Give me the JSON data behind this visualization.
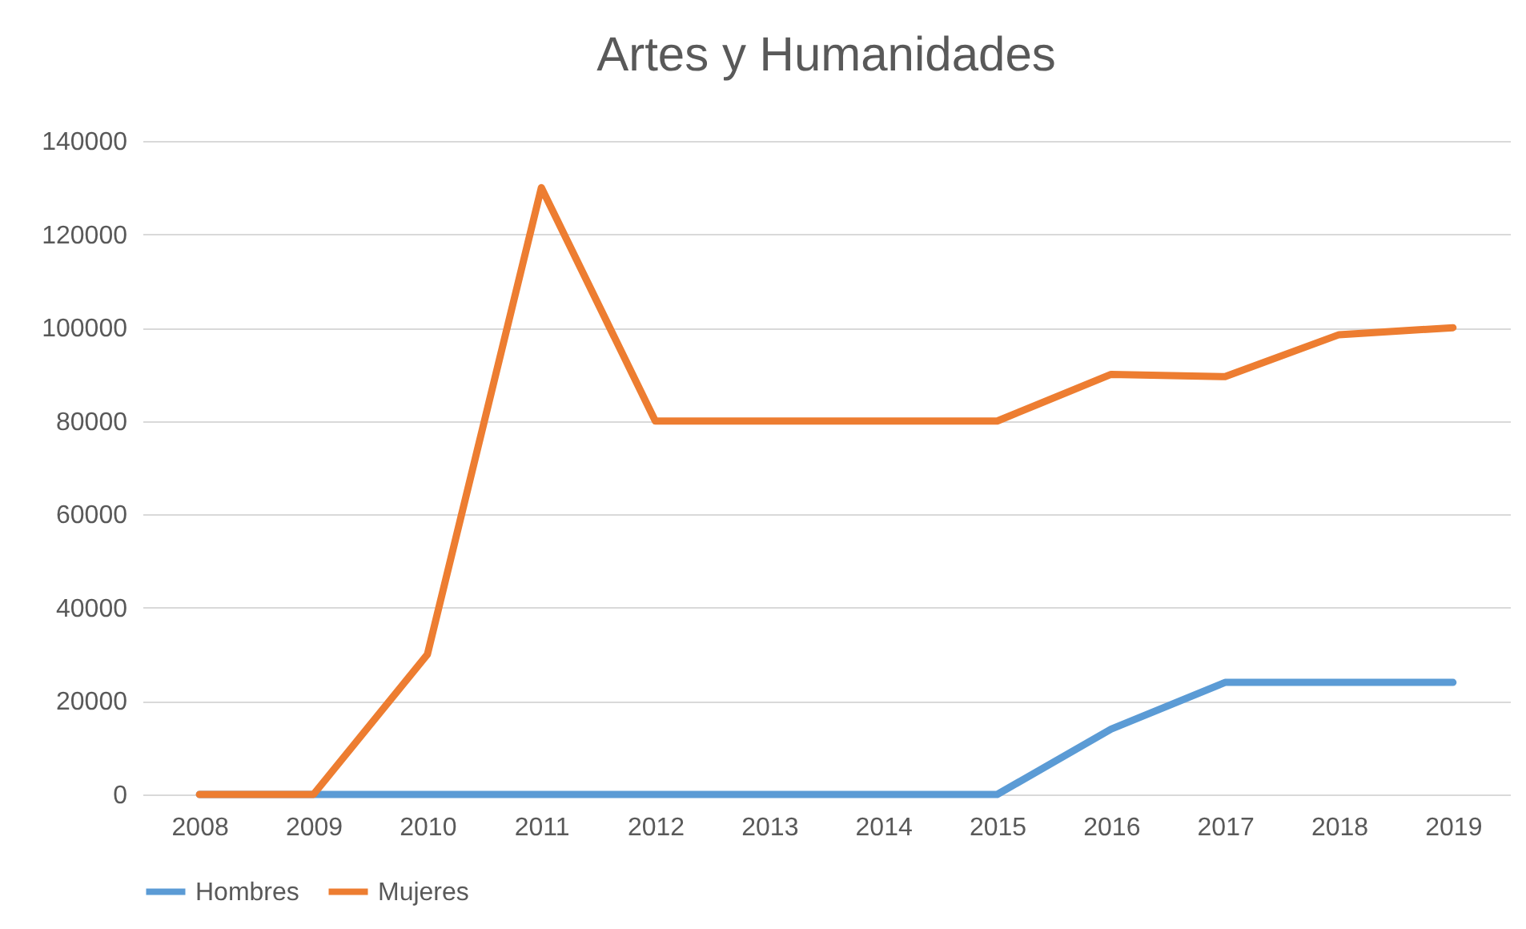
{
  "chart_data": {
    "type": "line",
    "title": "Artes y Humanidades",
    "categories": [
      "2008",
      "2009",
      "2010",
      "2011",
      "2012",
      "2013",
      "2014",
      "2015",
      "2016",
      "2017",
      "2018",
      "2019"
    ],
    "series": [
      {
        "name": "Hombres",
        "color": "#5b9bd5",
        "values": [
          0,
          0,
          0,
          0,
          0,
          0,
          0,
          0,
          14000,
          24000,
          24000,
          24000
        ]
      },
      {
        "name": "Mujeres",
        "color": "#ed7d31",
        "values": [
          0,
          0,
          30000,
          130000,
          80000,
          80000,
          80000,
          80000,
          90000,
          89500,
          98500,
          100000
        ]
      }
    ],
    "ylim": [
      0,
      140000
    ],
    "yticks": [
      0,
      20000,
      40000,
      60000,
      80000,
      100000,
      120000,
      140000
    ],
    "grid": "y",
    "legend": "bottom",
    "marker": "none",
    "line_style": "solid"
  }
}
